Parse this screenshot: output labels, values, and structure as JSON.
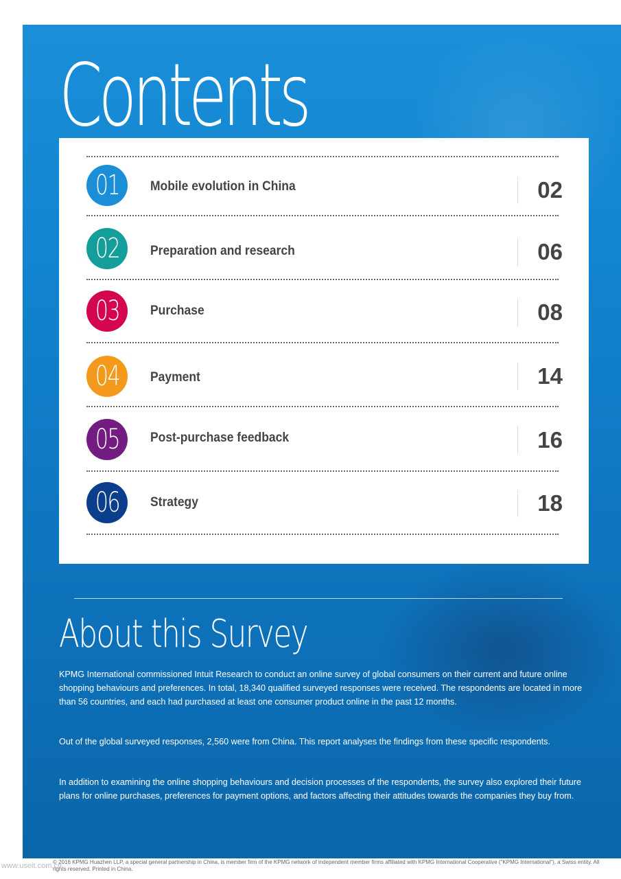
{
  "contents_title": "Contents",
  "toc": [
    {
      "number": "01",
      "label": "Mobile evolution in China",
      "page": "02",
      "color": "#1a8fd8"
    },
    {
      "number": "02",
      "label": "Preparation and research",
      "page": "06",
      "color": "#139e9c"
    },
    {
      "number": "03",
      "label": "Purchase",
      "page": "08",
      "color": "#d4064f"
    },
    {
      "number": "04",
      "label": "Payment",
      "page": "14",
      "color": "#f39a1c"
    },
    {
      "number": "05",
      "label": "Post-purchase feedback",
      "page": "16",
      "color": "#731c82"
    },
    {
      "number": "06",
      "label": "Strategy",
      "page": "18",
      "color": "#0b3f8c"
    }
  ],
  "about": {
    "title": "About this Survey",
    "paragraphs": [
      "KPMG International commissioned Intuit Research to conduct an online survey of global consumers on their current and future online shopping behaviours and preferences. In total, 18,340 qualified surveyed responses were received. The respondents are located in more than 56 countries, and each had purchased at least one consumer product online in the past 12 months.",
      "Out of the global surveyed responses, 2,560 were from China. This report analyses the findings from these specific respondents.",
      "In addition to examining the online shopping behaviours and decision processes of the respondents, the survey also explored their future plans for online purchases, preferences for payment options, and factors affecting their attitudes towards the companies they buy from."
    ]
  },
  "footer": "© 2016 KPMG Huazhen LLP, a special general partnership in China, is member firm of the KPMG network of independent member firms affiliated with KPMG International Cooperative (\"KPMG International\"), a Swiss entity. All rights reserved. Printed in China.",
  "watermark": "www.useit.com.cn"
}
